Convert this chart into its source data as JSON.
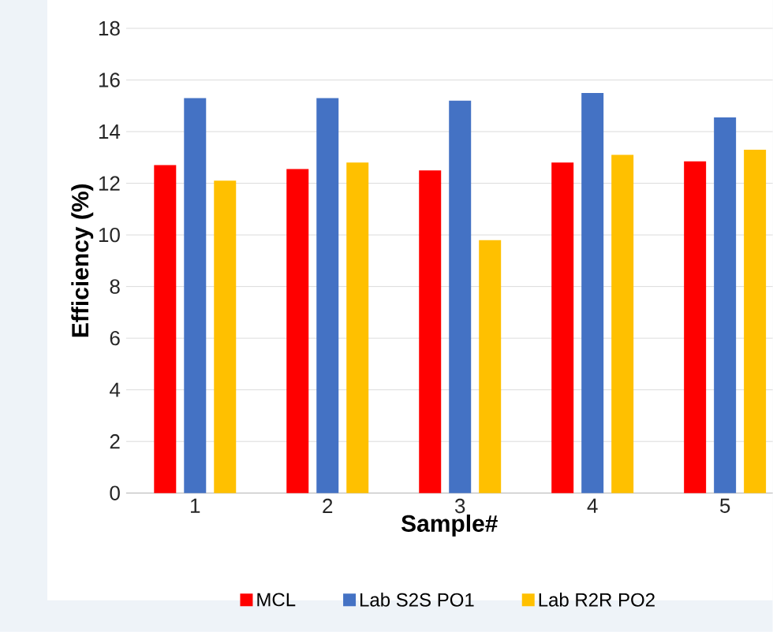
{
  "chart_data": {
    "type": "bar",
    "xlabel": "Sample#",
    "ylabel": "Efficiency (%)",
    "categories": [
      "1",
      "2",
      "3",
      "4",
      "5"
    ],
    "series": [
      {
        "name": "MCL",
        "color": "#ff0000",
        "values": [
          12.7,
          12.55,
          12.5,
          12.8,
          12.85
        ]
      },
      {
        "name": "Lab S2S PO1",
        "color": "#4472c4",
        "values": [
          15.3,
          15.3,
          15.2,
          15.5,
          14.55
        ]
      },
      {
        "name": "Lab R2R PO2",
        "color": "#ffc000",
        "values": [
          12.1,
          12.8,
          9.8,
          13.1,
          13.3
        ]
      }
    ],
    "ylim": [
      0,
      18
    ],
    "yticks": [
      0,
      2,
      4,
      6,
      8,
      10,
      12,
      14,
      16,
      18
    ],
    "grid": "y",
    "legend": "bottom"
  }
}
